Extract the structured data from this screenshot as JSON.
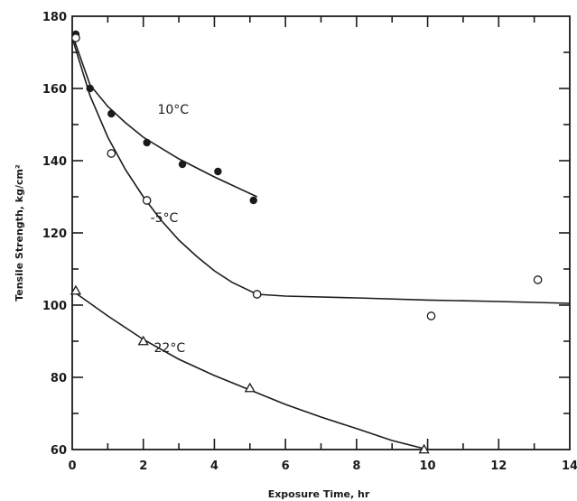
{
  "chart_data": {
    "type": "scatter",
    "title": "",
    "xlabel": "Exposure Time, hr",
    "ylabel": "Tensile Strength, kg/cm²",
    "xlim": [
      0,
      14
    ],
    "ylim": [
      60,
      180
    ],
    "x_ticks": [
      0,
      2,
      4,
      6,
      8,
      10,
      12,
      14
    ],
    "y_ticks": [
      60,
      80,
      100,
      120,
      140,
      160,
      180
    ],
    "grid": false,
    "legend": "none",
    "series": [
      {
        "name": "10°C",
        "marker": "filled-circle",
        "points": [
          [
            0.1,
            175
          ],
          [
            0.5,
            160
          ],
          [
            1.1,
            153
          ],
          [
            2.1,
            145
          ],
          [
            3.1,
            139
          ],
          [
            4.1,
            137
          ],
          [
            5.1,
            129
          ]
        ],
        "fit": [
          [
            0,
            175
          ],
          [
            0.5,
            161
          ],
          [
            1,
            155
          ],
          [
            1.5,
            150.5
          ],
          [
            2,
            146.5
          ],
          [
            3,
            140.5
          ],
          [
            4,
            135.5
          ],
          [
            5.2,
            130
          ]
        ]
      },
      {
        "name": "-5°C",
        "marker": "open-circle",
        "points": [
          [
            0.1,
            174
          ],
          [
            1.1,
            142
          ],
          [
            2.1,
            129
          ],
          [
            5.2,
            103
          ],
          [
            10.1,
            97
          ],
          [
            13.1,
            107
          ]
        ],
        "fit": [
          [
            0,
            174
          ],
          [
            0.5,
            158
          ],
          [
            1,
            146.5
          ],
          [
            1.5,
            137.5
          ],
          [
            2,
            130
          ],
          [
            2.5,
            123.5
          ],
          [
            3,
            118
          ],
          [
            3.5,
            113.5
          ],
          [
            4,
            109.5
          ],
          [
            4.5,
            106.3
          ],
          [
            5.2,
            103
          ],
          [
            6,
            102.5
          ],
          [
            8,
            102
          ],
          [
            10,
            101.4
          ],
          [
            12,
            101
          ],
          [
            14,
            100.5
          ]
        ]
      },
      {
        "name": "22°C",
        "marker": "open-triangle",
        "points": [
          [
            0.1,
            104
          ],
          [
            2.0,
            90
          ],
          [
            5.0,
            77
          ],
          [
            9.9,
            60
          ]
        ],
        "fit": [
          [
            0,
            104
          ],
          [
            1,
            97
          ],
          [
            2,
            90.5
          ],
          [
            3,
            85
          ],
          [
            4,
            80.5
          ],
          [
            5,
            76.5
          ],
          [
            6,
            72.5
          ],
          [
            7,
            69
          ],
          [
            8,
            65.8
          ],
          [
            9,
            62.5
          ],
          [
            10,
            60
          ]
        ]
      }
    ]
  }
}
